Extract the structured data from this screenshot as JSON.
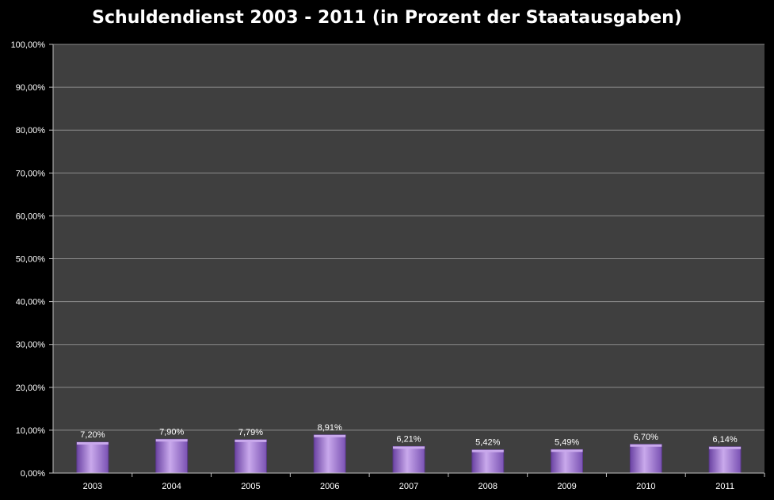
{
  "chart_data": {
    "type": "bar",
    "title": "Schuldendienst 2003 - 2011 (in Prozent der Staatausgaben)",
    "categories": [
      "2003",
      "2004",
      "2005",
      "2006",
      "2007",
      "2008",
      "2009",
      "2010",
      "2011"
    ],
    "values": [
      7.2,
      7.9,
      7.79,
      8.91,
      6.21,
      5.42,
      5.49,
      6.7,
      6.14
    ],
    "data_labels": [
      "7,20%",
      "7,90%",
      "7,79%",
      "8,91%",
      "6,21%",
      "5,42%",
      "5,49%",
      "6,70%",
      "6,14%"
    ],
    "ylim": [
      0,
      100
    ],
    "y_ticks": [
      0,
      10,
      20,
      30,
      40,
      50,
      60,
      70,
      80,
      90,
      100
    ],
    "y_tick_labels": [
      "0,00%",
      "10,00%",
      "20,00%",
      "30,00%",
      "40,00%",
      "50,00%",
      "60,00%",
      "70,00%",
      "80,00%",
      "90,00%",
      "100,00%"
    ],
    "xlabel": "",
    "ylabel": "",
    "grid": true,
    "legend": "none",
    "colors": {
      "page_background": "#000000",
      "plot_background": "#3f3f3f",
      "gridline": "#8c8c8c",
      "bar_light": "#c9a9ec",
      "bar_mid": "#9b72cf",
      "bar_dark": "#6b43a3",
      "text": "#ffffff"
    }
  }
}
